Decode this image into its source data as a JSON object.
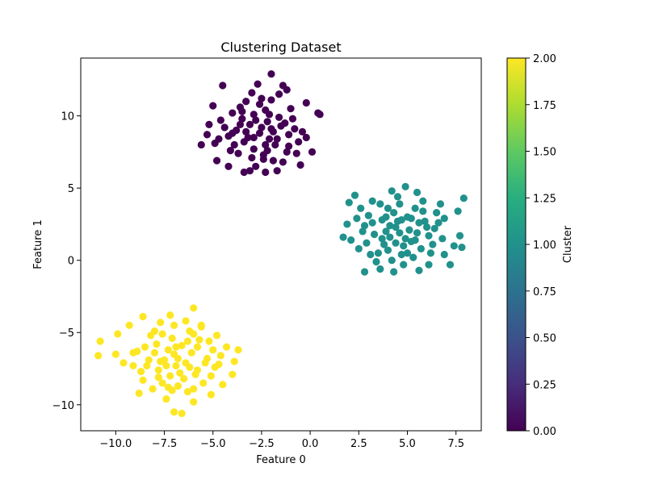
{
  "chart_data": {
    "type": "scatter",
    "title": "Clustering Dataset",
    "xlabel": "Feature 0",
    "ylabel": "Feature 1",
    "xlim": [
      -11.8,
      8.8
    ],
    "ylim": [
      -11.8,
      14.0
    ],
    "xticks": [
      -10.0,
      -7.5,
      -5.0,
      -2.5,
      0.0,
      2.5,
      5.0,
      7.5
    ],
    "xtick_labels": [
      "−10.0",
      "−7.5",
      "−5.0",
      "−2.5",
      "0.0",
      "2.5",
      "5.0",
      "7.5"
    ],
    "yticks": [
      -10,
      -5,
      0,
      5,
      10
    ],
    "ytick_labels": [
      "−10",
      "−5",
      "0",
      "5",
      "10"
    ],
    "grid": false,
    "colormap": "viridis",
    "colorbar": {
      "label": "Cluster",
      "min": 0.0,
      "max": 2.0,
      "ticks": [
        0.0,
        0.25,
        0.5,
        0.75,
        1.0,
        1.25,
        1.5,
        1.75,
        2.0
      ],
      "tick_labels": [
        "0.00",
        "0.25",
        "0.50",
        "0.75",
        "1.00",
        "1.25",
        "1.50",
        "1.75",
        "2.00"
      ]
    },
    "series": [
      {
        "cluster": 0,
        "color": "#440154",
        "center": [
          -2.6,
          8.8
        ],
        "points": [
          [
            -2.6,
            8.8
          ],
          [
            -3.1,
            9.4
          ],
          [
            -2.0,
            9.1
          ],
          [
            -3.4,
            8.2
          ],
          [
            -1.8,
            8.0
          ],
          [
            -2.9,
            10.1
          ],
          [
            -2.2,
            7.6
          ],
          [
            -3.8,
            9.0
          ],
          [
            -1.5,
            9.3
          ],
          [
            -2.5,
            11.2
          ],
          [
            -4.2,
            8.6
          ],
          [
            -1.1,
            8.7
          ],
          [
            -3.0,
            7.1
          ],
          [
            -2.3,
            10.4
          ],
          [
            -4.6,
            9.7
          ],
          [
            -0.9,
            9.8
          ],
          [
            -3.6,
            10.6
          ],
          [
            -1.9,
            6.9
          ],
          [
            -4.9,
            8.1
          ],
          [
            -0.6,
            8.2
          ],
          [
            -2.7,
            12.2
          ],
          [
            -2.0,
            12.9
          ],
          [
            -1.6,
            11.5
          ],
          [
            -4.5,
            12.1
          ],
          [
            -1.4,
            12.1
          ],
          [
            -5.6,
            8.0
          ],
          [
            -5.2,
            9.4
          ],
          [
            -4.2,
            6.5
          ],
          [
            -3.1,
            6.2
          ],
          [
            -2.3,
            6.1
          ],
          [
            -1.7,
            6.2
          ],
          [
            -0.5,
            6.6
          ],
          [
            0.1,
            7.5
          ],
          [
            0.4,
            10.2
          ],
          [
            0.5,
            10.1
          ],
          [
            -0.2,
            10.9
          ],
          [
            -5.0,
            10.7
          ],
          [
            -4.8,
            6.9
          ],
          [
            -3.4,
            6.1
          ],
          [
            -1.2,
            11.8
          ],
          [
            -3.3,
            8.9
          ],
          [
            -2.1,
            8.4
          ],
          [
            -2.8,
            9.7
          ],
          [
            -1.6,
            9.9
          ],
          [
            -3.9,
            8.0
          ],
          [
            -2.4,
            7.3
          ],
          [
            -1.2,
            7.5
          ],
          [
            -3.5,
            9.8
          ],
          [
            -4.0,
            10.2
          ],
          [
            -0.8,
            9.1
          ],
          [
            -2.9,
            8.5
          ],
          [
            -2.2,
            9.6
          ],
          [
            -1.9,
            8.9
          ],
          [
            -3.7,
            7.4
          ],
          [
            -4.4,
            9.2
          ],
          [
            -0.4,
            8.9
          ],
          [
            -1.0,
            10.5
          ],
          [
            -3.3,
            11.0
          ],
          [
            -2.6,
            10.8
          ],
          [
            -5.3,
            8.7
          ],
          [
            -4.1,
            7.6
          ],
          [
            -0.7,
            7.4
          ],
          [
            -2.0,
            11.1
          ],
          [
            -3.0,
            11.6
          ],
          [
            -1.4,
            6.8
          ],
          [
            -2.8,
            6.5
          ],
          [
            -4.7,
            8.4
          ],
          [
            -0.2,
            8.5
          ],
          [
            -2.5,
            9.2
          ],
          [
            -3.2,
            8.5
          ],
          [
            -1.7,
            8.4
          ],
          [
            -2.3,
            8.0
          ],
          [
            -3.6,
            9.4
          ],
          [
            -1.3,
            9.5
          ],
          [
            -2.9,
            7.7
          ],
          [
            -2.1,
            10.1
          ],
          [
            -4.0,
            8.8
          ],
          [
            -1.1,
            7.9
          ],
          [
            -3.5,
            10.3
          ],
          [
            -2.4,
            7.0
          ]
        ]
      },
      {
        "cluster": 1,
        "color": "#21918c",
        "center": [
          4.6,
          1.9
        ],
        "points": [
          [
            4.6,
            1.9
          ],
          [
            4.1,
            2.4
          ],
          [
            5.2,
            1.3
          ],
          [
            3.7,
            1.5
          ],
          [
            5.6,
            2.6
          ],
          [
            4.3,
            3.3
          ],
          [
            5.0,
            0.5
          ],
          [
            3.2,
            2.6
          ],
          [
            6.1,
            1.7
          ],
          [
            4.0,
            0.7
          ],
          [
            5.4,
            3.6
          ],
          [
            2.9,
            1.2
          ],
          [
            6.4,
            2.2
          ],
          [
            4.5,
            4.4
          ],
          [
            3.6,
            3.9
          ],
          [
            5.8,
            4.1
          ],
          [
            2.4,
            2.9
          ],
          [
            6.9,
            2.9
          ],
          [
            4.8,
            -0.3
          ],
          [
            3.4,
            -0.1
          ],
          [
            2.3,
            4.5
          ],
          [
            2.0,
            4.0
          ],
          [
            1.9,
            2.5
          ],
          [
            1.7,
            1.6
          ],
          [
            2.1,
            1.4
          ],
          [
            2.5,
            0.8
          ],
          [
            2.8,
            -0.8
          ],
          [
            3.6,
            -0.6
          ],
          [
            4.3,
            -0.8
          ],
          [
            5.6,
            -0.7
          ],
          [
            6.1,
            -0.3
          ],
          [
            6.9,
            0.4
          ],
          [
            7.2,
            -0.3
          ],
          [
            7.4,
            1.0
          ],
          [
            7.8,
            0.9
          ],
          [
            7.7,
            1.7
          ],
          [
            7.9,
            4.3
          ],
          [
            7.6,
            3.4
          ],
          [
            6.7,
            3.9
          ],
          [
            4.9,
            5.1
          ],
          [
            5.5,
            4.7
          ],
          [
            3.2,
            4.1
          ],
          [
            4.2,
            4.8
          ],
          [
            4.4,
            1.2
          ],
          [
            5.1,
            2.1
          ],
          [
            3.9,
            2.0
          ],
          [
            4.7,
            2.8
          ],
          [
            5.9,
            2.7
          ],
          [
            3.0,
            3.1
          ],
          [
            6.3,
            1.1
          ],
          [
            4.9,
            1.5
          ],
          [
            3.5,
            0.5
          ],
          [
            5.3,
            0.2
          ],
          [
            4.0,
            3.6
          ],
          [
            6.5,
            3.3
          ],
          [
            2.7,
            2.0
          ],
          [
            5.7,
            0.8
          ],
          [
            3.8,
            1.1
          ],
          [
            4.6,
            3.9
          ],
          [
            6.0,
            2.3
          ],
          [
            3.3,
            1.8
          ],
          [
            5.0,
            3.0
          ],
          [
            4.2,
            0.0
          ],
          [
            2.6,
            3.6
          ],
          [
            6.8,
            1.5
          ],
          [
            4.4,
            2.3
          ],
          [
            5.5,
            1.9
          ],
          [
            3.7,
            2.8
          ],
          [
            4.8,
            1.0
          ],
          [
            5.2,
            2.9
          ],
          [
            3.1,
            0.4
          ],
          [
            6.6,
            2.6
          ],
          [
            4.1,
            1.6
          ],
          [
            5.8,
            3.4
          ],
          [
            3.9,
            3.0
          ],
          [
            4.7,
            0.4
          ],
          [
            6.2,
            0.5
          ],
          [
            2.8,
            2.4
          ],
          [
            5.4,
            1.4
          ],
          [
            4.5,
            2.7
          ]
        ]
      },
      {
        "cluster": 2,
        "color": "#fde725",
        "center": [
          -6.8,
          -6.8
        ],
        "points": [
          [
            -6.8,
            -6.8
          ],
          [
            -7.3,
            -6.2
          ],
          [
            -6.2,
            -7.4
          ],
          [
            -7.8,
            -7.6
          ],
          [
            -5.8,
            -6.0
          ],
          [
            -7.1,
            -5.4
          ],
          [
            -6.5,
            -8.2
          ],
          [
            -8.3,
            -6.9
          ],
          [
            -5.4,
            -7.1
          ],
          [
            -7.6,
            -8.5
          ],
          [
            -6.0,
            -5.1
          ],
          [
            -8.7,
            -7.7
          ],
          [
            -5.1,
            -8.0
          ],
          [
            -7.0,
            -4.5
          ],
          [
            -6.3,
            -9.1
          ],
          [
            -8.9,
            -6.3
          ],
          [
            -4.6,
            -6.6
          ],
          [
            -7.7,
            -4.3
          ],
          [
            -5.6,
            -4.6
          ],
          [
            -8.1,
            -8.9
          ],
          [
            -10.8,
            -5.6
          ],
          [
            -10.9,
            -6.6
          ],
          [
            -10.0,
            -6.5
          ],
          [
            -9.6,
            -7.1
          ],
          [
            -9.1,
            -7.3
          ],
          [
            -9.1,
            -6.4
          ],
          [
            -8.6,
            -3.9
          ],
          [
            -7.2,
            -3.8
          ],
          [
            -6.0,
            -3.3
          ],
          [
            -5.6,
            -4.5
          ],
          [
            -4.3,
            -6.0
          ],
          [
            -3.7,
            -6.2
          ],
          [
            -3.9,
            -7.0
          ],
          [
            -4.0,
            -7.9
          ],
          [
            -5.1,
            -9.3
          ],
          [
            -6.0,
            -9.8
          ],
          [
            -6.6,
            -10.6
          ],
          [
            -7.0,
            -10.5
          ],
          [
            -7.4,
            -9.6
          ],
          [
            -8.8,
            -9.2
          ],
          [
            -9.9,
            -5.1
          ],
          [
            -9.3,
            -4.5
          ],
          [
            -4.8,
            -5.2
          ],
          [
            -4.5,
            -8.6
          ],
          [
            -6.9,
            -7.3
          ],
          [
            -7.5,
            -6.9
          ],
          [
            -6.1,
            -6.4
          ],
          [
            -5.9,
            -7.9
          ],
          [
            -7.9,
            -5.8
          ],
          [
            -6.6,
            -5.9
          ],
          [
            -8.4,
            -7.3
          ],
          [
            -5.3,
            -6.8
          ],
          [
            -7.2,
            -8.0
          ],
          [
            -6.4,
            -7.1
          ],
          [
            -8.0,
            -6.4
          ],
          [
            -5.7,
            -5.5
          ],
          [
            -6.8,
            -8.7
          ],
          [
            -7.6,
            -5.1
          ],
          [
            -4.9,
            -7.4
          ],
          [
            -8.6,
            -8.3
          ],
          [
            -6.2,
            -4.9
          ],
          [
            -7.4,
            -7.3
          ],
          [
            -5.5,
            -8.5
          ],
          [
            -6.9,
            -6.0
          ],
          [
            -8.2,
            -5.2
          ],
          [
            -5.0,
            -6.2
          ],
          [
            -7.1,
            -9.0
          ],
          [
            -6.3,
            -5.6
          ],
          [
            -7.8,
            -8.1
          ],
          [
            -5.8,
            -7.6
          ],
          [
            -6.7,
            -7.8
          ],
          [
            -8.5,
            -6.0
          ],
          [
            -5.2,
            -5.6
          ],
          [
            -7.0,
            -6.5
          ],
          [
            -6.0,
            -8.9
          ],
          [
            -7.7,
            -7.0
          ],
          [
            -4.7,
            -7.2
          ],
          [
            -8.0,
            -4.9
          ],
          [
            -6.4,
            -4.2
          ],
          [
            -7.3,
            -8.8
          ]
        ]
      }
    ]
  }
}
